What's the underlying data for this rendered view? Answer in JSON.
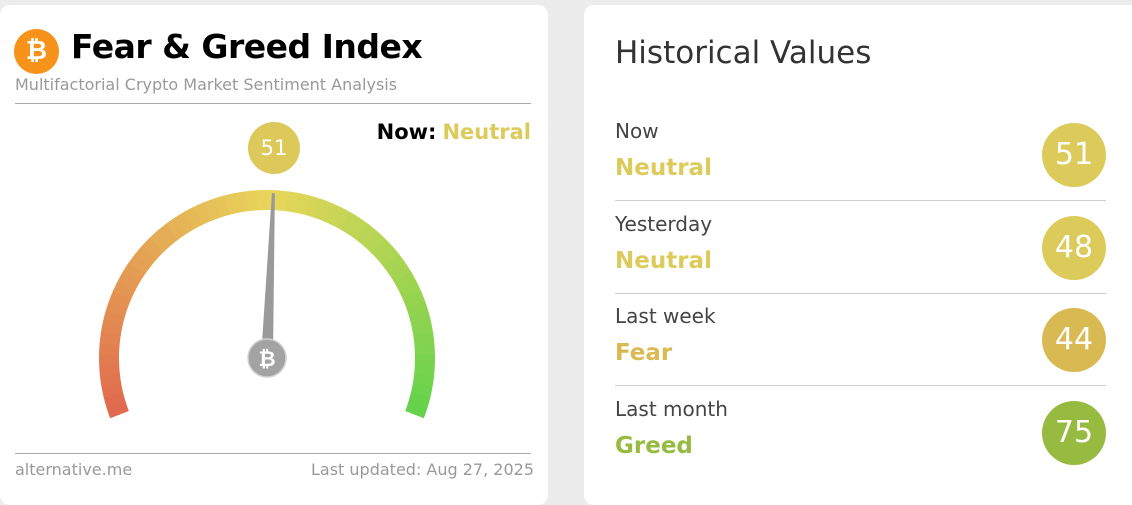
{
  "header": {
    "title": "Fear & Greed Index",
    "subtitle": "Multifactorial Crypto Market Sentiment Analysis",
    "logo_icon": "bitcoin-icon",
    "logo_symbol": "₿"
  },
  "now": {
    "label": "Now:",
    "classification": "Neutral",
    "value": 51,
    "value_text": "51",
    "color": "#dccb5a"
  },
  "gauge": {
    "min": 0,
    "max": 100,
    "value": 51,
    "colors": {
      "low": "#e06a4e",
      "mid": "#e8d65a",
      "high": "#5fd24a"
    }
  },
  "footer": {
    "source": "alternative.me",
    "updated": "Last updated: Aug 27, 2025"
  },
  "historical": {
    "title": "Historical Values",
    "rows": [
      {
        "when": "Now",
        "classification": "Neutral",
        "value": "51",
        "color": "#dccb5a"
      },
      {
        "when": "Yesterday",
        "classification": "Neutral",
        "value": "48",
        "color": "#dccb5a"
      },
      {
        "when": "Last week",
        "classification": "Fear",
        "value": "44",
        "color": "#d9b951"
      },
      {
        "when": "Last month",
        "classification": "Greed",
        "value": "75",
        "color": "#96bb40"
      }
    ]
  }
}
